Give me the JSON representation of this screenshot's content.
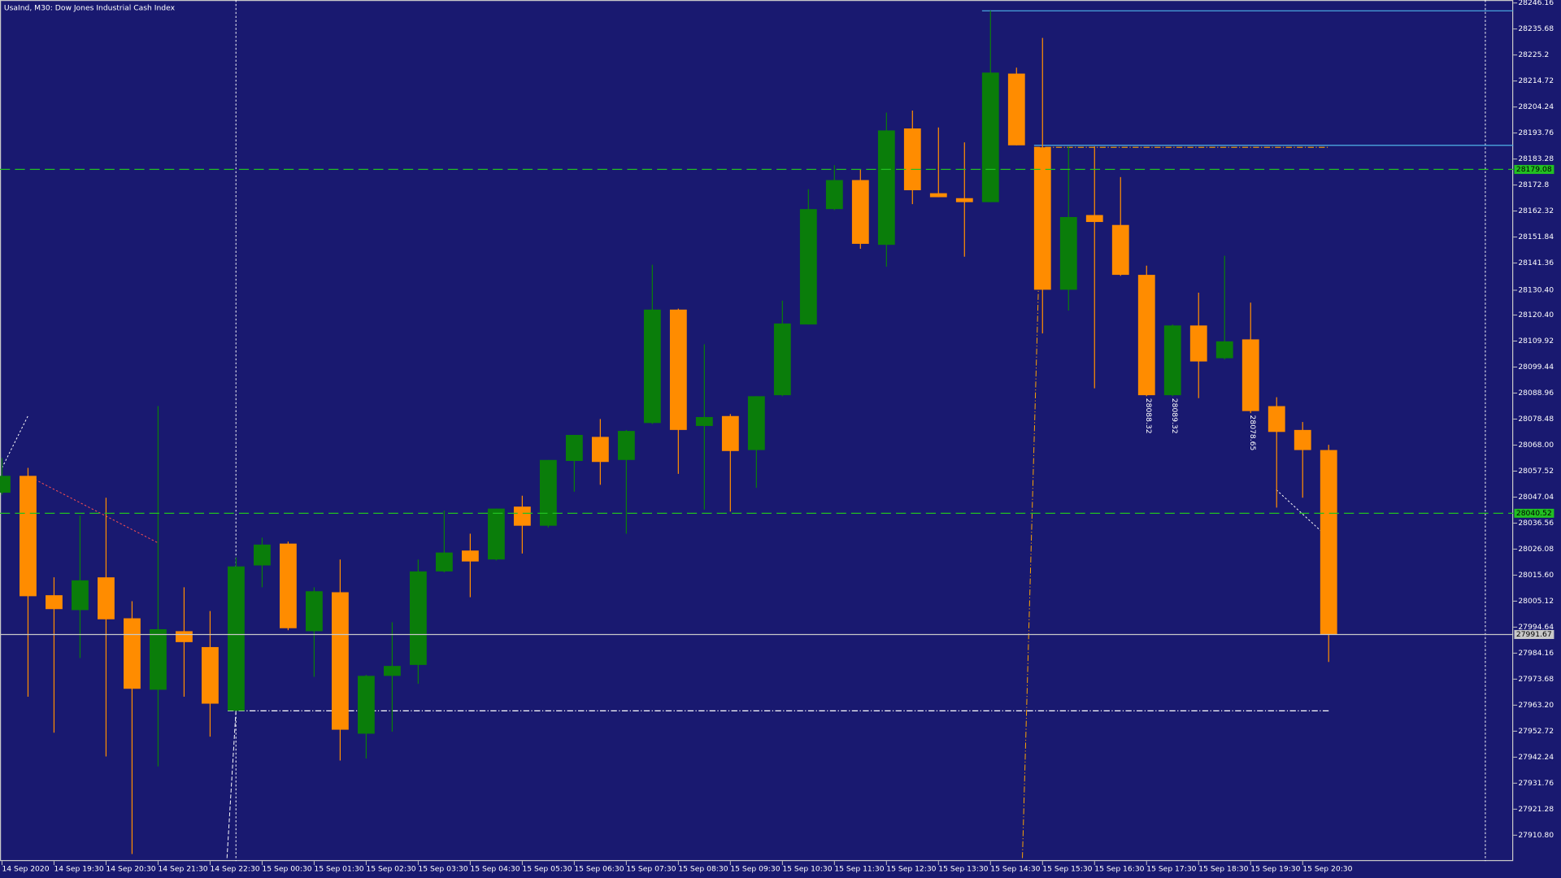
{
  "chart_data": {
    "type": "candlestick",
    "title": "UsaInd, M30:  Dow Jones Industrial Cash Index",
    "background": "#191970",
    "up_color": "#0a7d0a",
    "down_color": "#ff8c00",
    "categories": [
      "14 Sep 2020",
      null,
      "14 Sep 19:30",
      null,
      "14 Sep 20:30",
      null,
      "14 Sep 21:30",
      null,
      "14 Sep 22:30",
      null,
      "15 Sep 00:30",
      null,
      "15 Sep 01:30",
      null,
      "15 Sep 02:30",
      null,
      "15 Sep 03:30",
      null,
      "15 Sep 04:30",
      null,
      "15 Sep 05:30",
      null,
      "15 Sep 06:30",
      null,
      "15 Sep 07:30",
      null,
      "15 Sep 08:30",
      null,
      "15 Sep 09:30",
      null,
      "15 Sep 10:30",
      null,
      "15 Sep 11:30",
      null,
      "15 Sep 12:30",
      null,
      "15 Sep 13:30",
      null,
      "15 Sep 14:30",
      null,
      "15 Sep 15:30",
      null,
      "15 Sep 16:30",
      null,
      "15 Sep 17:30",
      null,
      "15 Sep 18:30",
      null,
      "15 Sep 19:30",
      null,
      "15 Sep 20:30",
      null
    ],
    "open": [
      28048.8,
      28055.6,
      28007.5,
      28001.5,
      28014.7,
      27998.2,
      27969.4,
      27993.0,
      27986.6,
      27960.9,
      28019.5,
      28028.3,
      27993.0,
      28008.7,
      27951.7,
      27975.0,
      27979.4,
      28017.1,
      28025.5,
      28021.9,
      28043.2,
      28035.5,
      28061.6,
      28071.3,
      28062.0,
      28076.9,
      28122.6,
      28075.7,
      28079.7,
      28066.0,
      28088.1,
      28116.6,
      28163.1,
      28174.8,
      28148.7,
      28195.6,
      28169.5,
      28167.5,
      28165.9,
      28217.7,
      28188.0,
      28130.6,
      28160.7,
      28156.7,
      28136.6,
      28088.1,
      28116.2,
      28103.0,
      28110.6,
      28083.7,
      28074.1,
      28066.0
    ],
    "high": [
      28062.8,
      28058.8,
      28014.7,
      28039.6,
      28046.8,
      28005.1,
      28083.7,
      28010.7,
      28001.1,
      28022.7,
      28030.7,
      28029.1,
      28010.7,
      28021.9,
      27975.4,
      27996.6,
      28021.9,
      28041.6,
      28032.3,
      28042.4,
      28047.6,
      28062.0,
      28072.1,
      28078.5,
      28074.1,
      28140.7,
      28123.0,
      28108.6,
      28080.5,
      28087.7,
      28126.2,
      28171.1,
      28180.8,
      28179.2,
      28202.0,
      28202.8,
      28196.0,
      28190.0,
      28243.0,
      28220.1,
      28232.1,
      28188.4,
      28188.4,
      28176.0,
      28140.3,
      28116.6,
      28129.4,
      28144.3,
      28125.4,
      28087.3,
      28077.3,
      28068.1
    ],
    "low": [
      28048.0,
      27966.6,
      27952.1,
      27982.2,
      27942.5,
      27903.2,
      27938.5,
      27966.6,
      27950.5,
      27960.9,
      28010.7,
      27993.4,
      27974.6,
      27940.9,
      27941.7,
      27952.5,
      27971.8,
      28016.7,
      28006.7,
      28021.5,
      28024.3,
      28034.8,
      28049.2,
      28052.0,
      28032.3,
      28076.5,
      28056.4,
      28042.0,
      28041.2,
      28050.8,
      28087.7,
      28116.6,
      28162.7,
      28147.1,
      28139.9,
      28165.1,
      28167.9,
      28143.9,
      28165.9,
      28188.8,
      28113.0,
      28122.2,
      28090.9,
      28136.2,
      28087.7,
      28087.7,
      28086.9,
      28102.5,
      28080.9,
      28042.8,
      28046.8,
      27980.6
    ],
    "close": [
      28055.6,
      28007.1,
      28001.9,
      28013.5,
      27997.8,
      27969.8,
      27993.8,
      27988.6,
      27963.8,
      28019.1,
      28027.9,
      27994.2,
      28009.1,
      27953.3,
      27975.0,
      27979.0,
      28017.1,
      28024.7,
      28021.1,
      28042.4,
      28035.5,
      28062.0,
      28072.1,
      28061.2,
      28073.7,
      28122.6,
      28074.1,
      28079.3,
      28065.6,
      28087.7,
      28117.0,
      28163.1,
      28174.8,
      28149.1,
      28194.8,
      28170.7,
      28167.9,
      28165.9,
      28218.1,
      28188.8,
      28130.6,
      28159.9,
      28157.9,
      28136.6,
      28088.1,
      28116.2,
      28101.7,
      28109.8,
      28081.7,
      28073.3,
      28066.0,
      27991.67
    ],
    "ylim": [
      27900.36,
      28247.36
    ],
    "yticks": [
      28246.16,
      28235.68,
      28225.2,
      28214.72,
      28204.24,
      28193.76,
      28183.28,
      28172.8,
      28162.32,
      28151.84,
      28141.36,
      {
        "value": 28130.4,
        "label": "28130.40"
      },
      {
        "value": 28120.4,
        "label": "28120.40"
      },
      28109.92,
      28099.44,
      28088.96,
      28078.48,
      {
        "value": 28068.0,
        "label": "28068.00"
      },
      28057.52,
      28047.04,
      28036.56,
      28026.08,
      {
        "value": 28015.6,
        "label": "28015.60"
      },
      28005.12,
      27994.64,
      27984.16,
      27973.68,
      {
        "value": 27963.2,
        "label": "27963.20"
      },
      27952.72,
      27942.24,
      27931.76,
      27921.28,
      {
        "value": 27910.8,
        "label": "27910.80"
      }
    ],
    "levels": [
      {
        "value": 28179.08,
        "color": "#22c022",
        "dash": "10,5"
      },
      {
        "value": 28040.52,
        "color": "#22c022",
        "dash": "10,5"
      },
      {
        "value": 27991.67,
        "color": "#c8c8c8",
        "dash": "none"
      }
    ],
    "hlines": [
      {
        "value": 28243.0,
        "start": 38,
        "color": "#4fb4e8",
        "dash": "none"
      },
      {
        "value": 28188.8,
        "start": 40,
        "color": "#4fb4e8",
        "dash": "none"
      },
      {
        "value": 28188.0,
        "start": 40,
        "end": 51,
        "color": "#ffa500",
        "dash": "6,2,1,2"
      },
      {
        "value": 27960.9,
        "start": 9,
        "end": 51,
        "color": "#ffffff",
        "dash": "6,2,1,2"
      }
    ],
    "annotations": [
      {
        "text": "28088.32",
        "index": 44
      },
      {
        "text": "28089.32",
        "index": 45
      },
      {
        "text": "28078.65",
        "index": 48
      }
    ]
  }
}
